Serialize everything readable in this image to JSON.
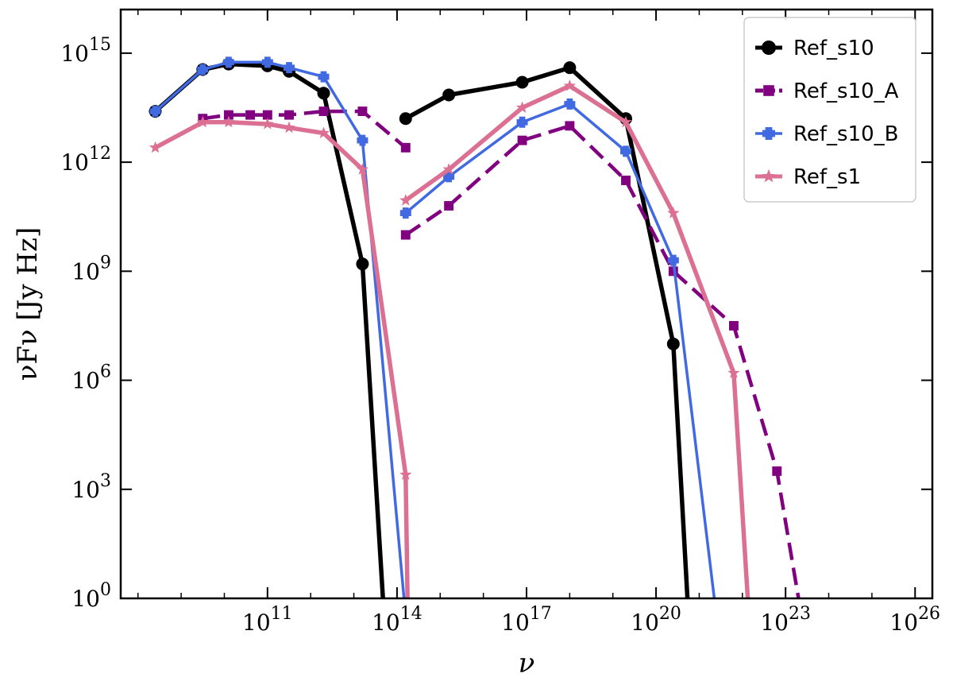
{
  "chart_data": {
    "type": "line",
    "title": "",
    "xlabel": "ν",
    "ylabel": "νF_ν [Jy Hz]",
    "xscale": "log",
    "yscale": "log",
    "xlim_exp": [
      7.6,
      26.4
    ],
    "ylim_exp": [
      0,
      16.2
    ],
    "x_ticks": [
      {
        "base": "10",
        "exp": "11",
        "value_exp": 11
      },
      {
        "base": "10",
        "exp": "14",
        "value_exp": 14
      },
      {
        "base": "10",
        "exp": "17",
        "value_exp": 17
      },
      {
        "base": "10",
        "exp": "20",
        "value_exp": 20
      },
      {
        "base": "10",
        "exp": "23",
        "value_exp": 23
      },
      {
        "base": "10",
        "exp": "26",
        "value_exp": 26
      }
    ],
    "y_ticks": [
      {
        "base": "10",
        "exp": "0",
        "value_exp": 0
      },
      {
        "base": "10",
        "exp": "3",
        "value_exp": 3
      },
      {
        "base": "10",
        "exp": "6",
        "value_exp": 6
      },
      {
        "base": "10",
        "exp": "9",
        "value_exp": 9
      },
      {
        "base": "10",
        "exp": "12",
        "value_exp": 12
      },
      {
        "base": "10",
        "exp": "15",
        "value_exp": 15
      }
    ],
    "legend_position": "top-right",
    "series": [
      {
        "name": "Ref_s10",
        "color": "#000000",
        "marker": "circle",
        "dash": "solid",
        "segments": [
          [
            [
              8.4,
              13.4
            ],
            [
              9.5,
              14.55
            ],
            [
              10.1,
              14.7
            ],
            [
              11.0,
              14.65
            ],
            [
              11.5,
              14.5
            ],
            [
              12.3,
              13.9
            ],
            [
              13.2,
              9.2
            ],
            [
              13.7,
              -0.5
            ]
          ],
          [
            [
              14.2,
              13.2
            ],
            [
              15.2,
              13.85
            ],
            [
              16.9,
              14.2
            ],
            [
              18.0,
              14.6
            ],
            [
              19.3,
              13.2
            ],
            [
              20.4,
              7.0
            ],
            [
              20.75,
              -0.5
            ]
          ]
        ]
      },
      {
        "name": "Ref_s10_A",
        "color": "#800080",
        "marker": "square",
        "dash": "dash",
        "segments": [
          [
            [
              9.5,
              13.2
            ],
            [
              10.1,
              13.3
            ],
            [
              10.6,
              13.3
            ],
            [
              11.0,
              13.3
            ],
            [
              11.5,
              13.3
            ],
            [
              12.3,
              13.4
            ],
            [
              13.2,
              13.4
            ],
            [
              14.2,
              12.4
            ]
          ],
          [
            [
              14.2,
              10.0
            ],
            [
              15.2,
              10.8
            ],
            [
              16.9,
              12.6
            ],
            [
              18.0,
              13.0
            ],
            [
              19.3,
              11.5
            ],
            [
              20.4,
              9.0
            ],
            [
              21.8,
              7.5
            ],
            [
              22.8,
              3.5
            ],
            [
              23.3,
              0
            ]
          ]
        ]
      },
      {
        "name": "Ref_s10_B",
        "color": "#4169E1",
        "marker": "plus",
        "dash": "solid",
        "segments": [
          [
            [
              8.4,
              13.4
            ],
            [
              9.5,
              14.55
            ],
            [
              10.1,
              14.75
            ],
            [
              11.0,
              14.75
            ],
            [
              11.5,
              14.6
            ],
            [
              12.3,
              14.35
            ],
            [
              13.2,
              12.6
            ],
            [
              14.2,
              -0.5
            ]
          ],
          [
            [
              14.2,
              10.6
            ],
            [
              15.2,
              11.6
            ],
            [
              16.9,
              13.1
            ],
            [
              18.0,
              13.6
            ],
            [
              19.3,
              12.3
            ],
            [
              20.4,
              9.3
            ],
            [
              21.4,
              -0.5
            ]
          ]
        ]
      },
      {
        "name": "Ref_s1",
        "color": "#DB7093",
        "marker": "star",
        "dash": "solid",
        "segments": [
          [
            [
              8.4,
              12.4
            ],
            [
              9.5,
              13.1
            ],
            [
              10.1,
              13.1
            ],
            [
              11.0,
              13.05
            ],
            [
              11.5,
              12.95
            ],
            [
              12.3,
              12.8
            ],
            [
              13.2,
              11.8
            ],
            [
              14.2,
              3.4
            ],
            [
              14.25,
              -0.5
            ]
          ],
          [
            [
              14.2,
              10.95
            ],
            [
              15.2,
              11.8
            ],
            [
              16.9,
              13.5
            ],
            [
              18.0,
              14.1
            ],
            [
              19.3,
              13.1
            ],
            [
              20.4,
              10.6
            ],
            [
              21.8,
              6.2
            ],
            [
              22.15,
              -0.5
            ]
          ]
        ]
      }
    ]
  }
}
